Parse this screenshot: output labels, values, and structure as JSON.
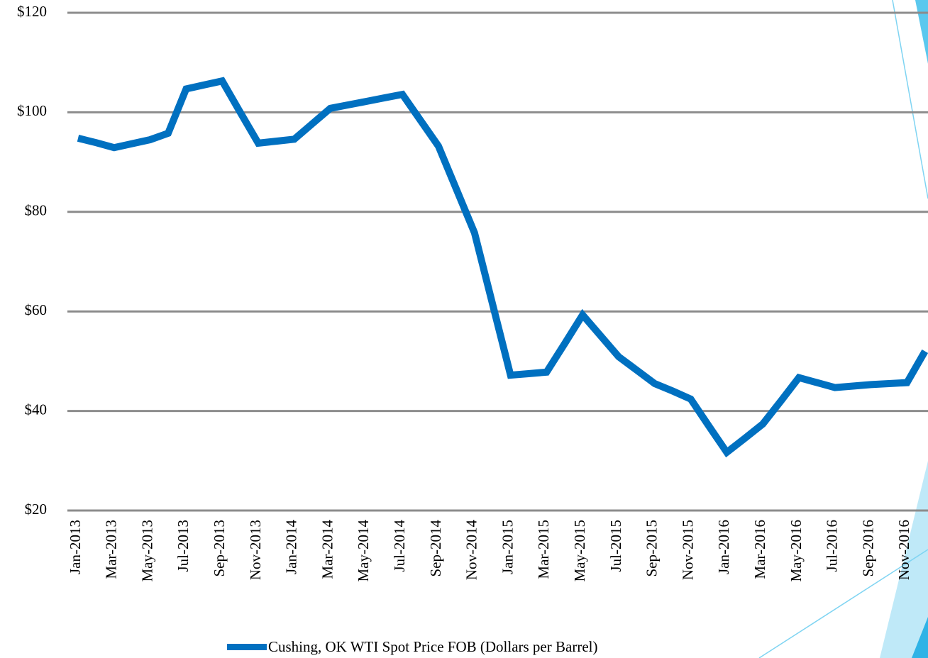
{
  "chart_data": {
    "type": "line",
    "categories": [
      "Jan-2013",
      null,
      "Mar-2013",
      null,
      "May-2013",
      null,
      "Jul-2013",
      null,
      "Sep-2013",
      null,
      "Nov-2013",
      null,
      "Jan-2014",
      null,
      "Mar-2014",
      null,
      "May-2014",
      null,
      "Jul-2014",
      null,
      "Sep-2014",
      null,
      "Nov-2014",
      null,
      "Jan-2015",
      null,
      "Mar-2015",
      null,
      "May-2015",
      null,
      "Jul-2015",
      null,
      "Sep-2015",
      null,
      "Nov-2015",
      null,
      "Jan-2016",
      null,
      "Mar-2016",
      null,
      "May-2016",
      null,
      "Jul-2016",
      null,
      "Sep-2016",
      null,
      "Nov-2016",
      null
    ],
    "series": [
      {
        "name": "Cushing, OK WTI Spot Price FOB (Dollars per Barrel)",
        "color": "#0070c0",
        "values": [
          94.8,
          93.9,
          92.9,
          93.7,
          94.5,
          95.8,
          104.7,
          105.5,
          106.3,
          100.0,
          93.8,
          94.2,
          94.6,
          97.7,
          100.8,
          101.5,
          102.2,
          102.9,
          103.6,
          98.4,
          93.2,
          84.5,
          75.8,
          61.5,
          47.2,
          47.5,
          47.8,
          53.5,
          59.3,
          55.1,
          50.9,
          48.2,
          45.5,
          44.0,
          42.4,
          37.0,
          31.7,
          34.5,
          37.4,
          42.0,
          46.7,
          45.7,
          44.7,
          45.0,
          45.3,
          45.5,
          45.7,
          52.0
        ]
      }
    ],
    "ylim": [
      20,
      120
    ],
    "yticks": [
      {
        "value": 20,
        "label": "$20"
      },
      {
        "value": 40,
        "label": "$40"
      },
      {
        "value": 60,
        "label": "$60"
      },
      {
        "value": 80,
        "label": "$80"
      },
      {
        "value": 100,
        "label": "$100"
      },
      {
        "value": 120,
        "label": "$120"
      }
    ],
    "grid": true,
    "legend": "bottom"
  }
}
